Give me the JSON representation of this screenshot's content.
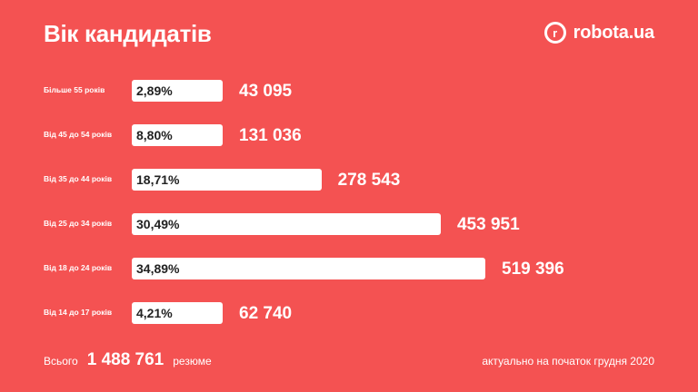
{
  "header": {
    "title": "Вік кандидатів",
    "brand_letter": "r",
    "brand_name": "robota.ua"
  },
  "chart_data": {
    "type": "bar",
    "orientation": "horizontal",
    "categories": [
      "Більше 55 років",
      "Від 45 до 54 років",
      "Від 35 до 44 років",
      "Від 25 до 34 років",
      "Від 18 до 24 років",
      "Від 14 до 17 років"
    ],
    "percent_labels": [
      "2,89%",
      "8,80%",
      "18,71%",
      "30,49%",
      "34,89%",
      "4,21%"
    ],
    "count_labels": [
      "43 095",
      "131 036",
      "278 543",
      "453 951",
      "519 396",
      "62 740"
    ],
    "values": [
      43095,
      131036,
      278543,
      453951,
      519396,
      62740
    ],
    "bar_color": "#ffffff",
    "background_color": "#f45252",
    "title": "Вік кандидатів"
  },
  "footer": {
    "total_prefix": "Всього",
    "total_value": "1 488 761",
    "total_suffix": "резюме",
    "note": "актуально на початок грудня 2020"
  }
}
